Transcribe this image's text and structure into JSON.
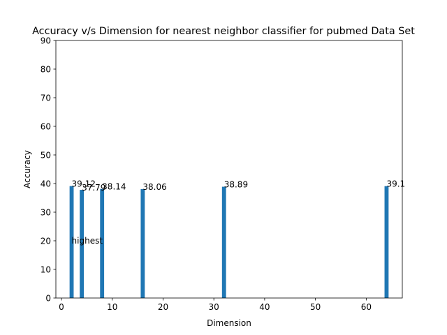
{
  "chart_data": {
    "type": "bar",
    "title": "Accuracy v/s Dimension for nearest neighbor classifier for pubmed Data Set",
    "xlabel": "Dimension",
    "ylabel": "Accuracy",
    "xlim": [
      -1.1,
      67.1
    ],
    "ylim": [
      0,
      90
    ],
    "xticks": [
      0,
      10,
      20,
      30,
      40,
      50,
      60
    ],
    "yticks": [
      0,
      10,
      20,
      30,
      40,
      50,
      60,
      70,
      80,
      90
    ],
    "grid": false,
    "bar_width": 0.8,
    "x": [
      2,
      4,
      8,
      16,
      32,
      64
    ],
    "values": [
      39.12,
      37.79,
      38.14,
      38.06,
      38.89,
      39.1
    ],
    "data_labels": [
      "39.12",
      "37.79",
      "38.14",
      "38.06",
      "38.89",
      "39.1"
    ],
    "annotations": [
      {
        "text": "highest",
        "x": 2,
        "y": 20
      }
    ],
    "colors": {
      "bar": "#1f77b4",
      "axis": "#000000"
    }
  }
}
